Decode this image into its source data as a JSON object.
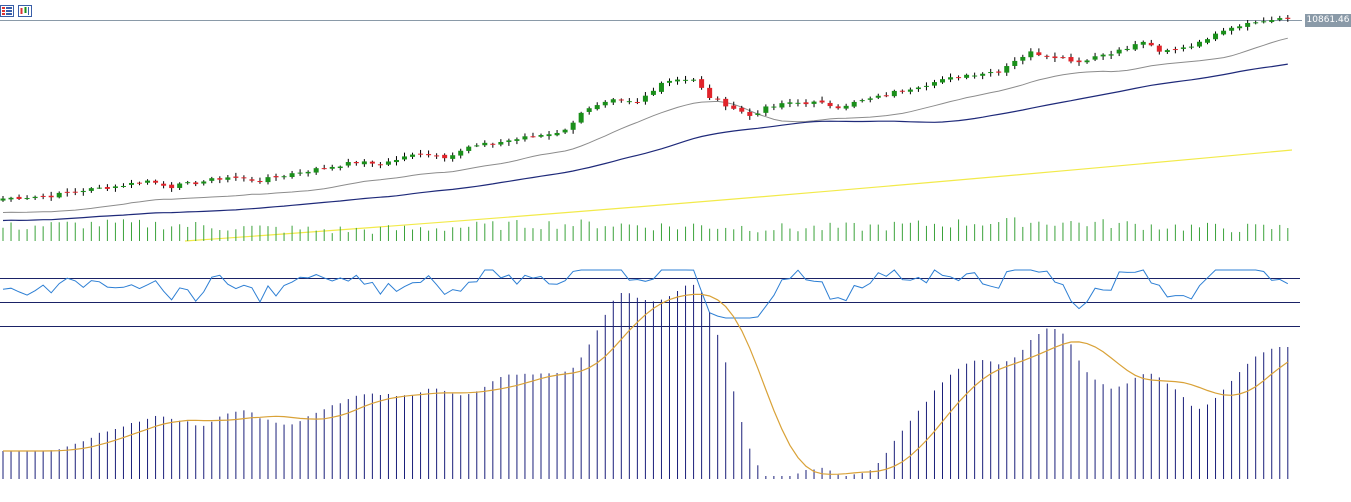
{
  "chart_data": {
    "type": "candlestick",
    "last_price": "10861.46",
    "colors": {
      "up": "#1a8f1a",
      "down": "#e0242b",
      "wick": "#000000",
      "ma_fast": "#8c8c8c",
      "ma_mid": "#1f2a7a",
      "ma_slow": "#f2ea4a",
      "volume": "#3aa23a",
      "rsi": "#2d7fd4",
      "rsi_levels": "#1a2266",
      "macd_hist": "#1a1f7a",
      "macd_signal": "#d9a238",
      "price_line": "#8a9aa8",
      "price_tag_bg": "#8a9aa8"
    },
    "close_path": [
      [
        0,
        0.035
      ],
      [
        6,
        0.05
      ],
      [
        10,
        0.08
      ],
      [
        14,
        0.1
      ],
      [
        18,
        0.13
      ],
      [
        21,
        0.1
      ],
      [
        24,
        0.12
      ],
      [
        28,
        0.15
      ],
      [
        32,
        0.13
      ],
      [
        36,
        0.17
      ],
      [
        40,
        0.2
      ],
      [
        44,
        0.23
      ],
      [
        47,
        0.22
      ],
      [
        52,
        0.28
      ],
      [
        55,
        0.26
      ],
      [
        58,
        0.31
      ],
      [
        62,
        0.34
      ],
      [
        66,
        0.37
      ],
      [
        70,
        0.4
      ],
      [
        72,
        0.5
      ],
      [
        76,
        0.56
      ],
      [
        79,
        0.55
      ],
      [
        82,
        0.66
      ],
      [
        84,
        0.68
      ],
      [
        86,
        0.67
      ],
      [
        88,
        0.58
      ],
      [
        91,
        0.52
      ],
      [
        93,
        0.48
      ],
      [
        95,
        0.52
      ],
      [
        98,
        0.55
      ],
      [
        101,
        0.55
      ],
      [
        104,
        0.53
      ],
      [
        106,
        0.55
      ],
      [
        109,
        0.58
      ],
      [
        112,
        0.62
      ],
      [
        116,
        0.66
      ],
      [
        120,
        0.7
      ],
      [
        124,
        0.72
      ],
      [
        126,
        0.78
      ],
      [
        128,
        0.82
      ],
      [
        131,
        0.8
      ],
      [
        134,
        0.77
      ],
      [
        136,
        0.8
      ],
      [
        140,
        0.84
      ],
      [
        142,
        0.88
      ],
      [
        144,
        0.82
      ],
      [
        146,
        0.84
      ],
      [
        149,
        0.87
      ],
      [
        151,
        0.93
      ],
      [
        154,
        0.97
      ],
      [
        157,
        0.99
      ],
      [
        160,
        1.0
      ]
    ],
    "indicators": {
      "volume": "histogram",
      "rsi": {
        "levels": [
          70,
          50,
          30
        ]
      },
      "macd": {
        "histogram": true,
        "signal_line": true
      }
    },
    "grid": false
  }
}
